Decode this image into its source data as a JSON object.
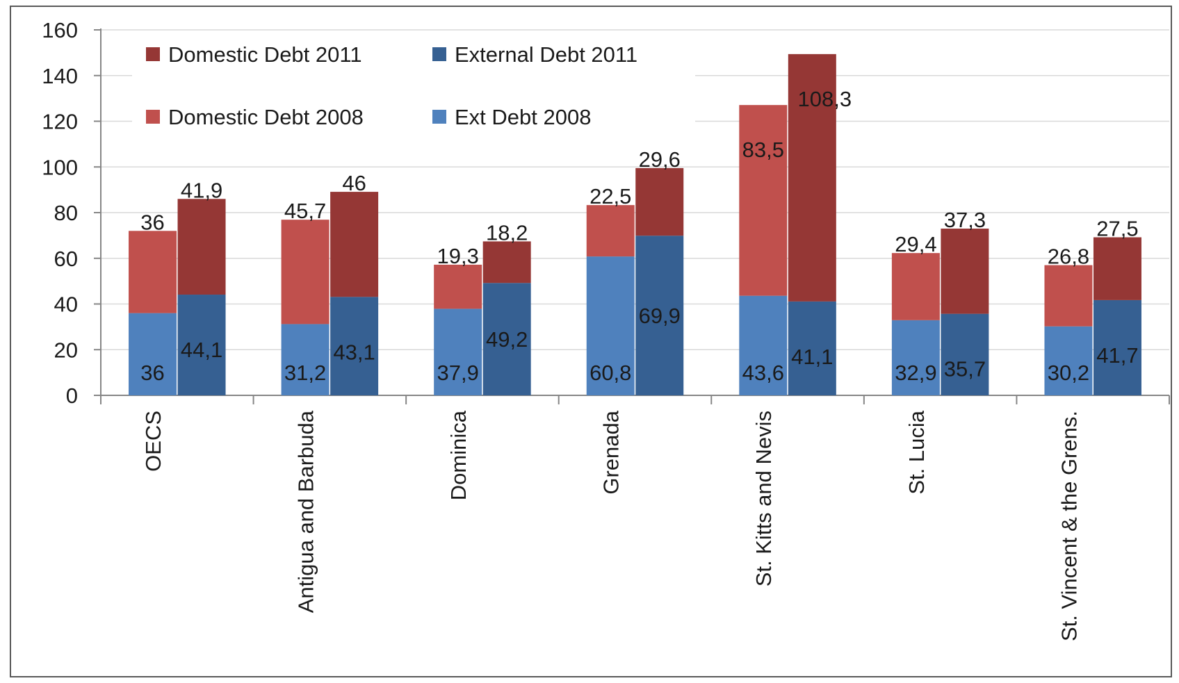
{
  "chart_data": {
    "type": "bar",
    "subtype": "stacked-grouped",
    "categories": [
      "OECS",
      "Antigua and Barbuda",
      "Dominica",
      "Grenada",
      "St. Kitts and Nevis",
      "St. Lucia",
      "St. Vincent & the Grens."
    ],
    "groups": [
      {
        "year": "2008",
        "series": [
          {
            "name": "Ext Debt 2008",
            "color": "#4f81bd",
            "values": [
              36,
              31.2,
              37.9,
              60.8,
              43.6,
              32.9,
              30.2
            ],
            "labels": [
              "36",
              "31,2",
              "37,9",
              "60,8",
              "43,6",
              "32,9",
              "30,2"
            ]
          },
          {
            "name": "Domestic Debt 2008",
            "color": "#c0504d",
            "values": [
              36,
              45.7,
              19.3,
              22.5,
              83.5,
              29.4,
              26.8
            ],
            "labels": [
              "36",
              "45,7",
              "19,3",
              "22,5",
              "83,5",
              "29,4",
              "26,8"
            ]
          }
        ]
      },
      {
        "year": "2011",
        "series": [
          {
            "name": "External Debt 2011",
            "color": "#366092",
            "values": [
              44.1,
              43.1,
              49.2,
              69.9,
              41.1,
              35.7,
              41.7
            ],
            "labels": [
              "44,1",
              "43,1",
              "49,2",
              "69,9",
              "41,1",
              "35,7",
              "41,7"
            ]
          },
          {
            "name": "Domestic Debt 2011",
            "color": "#953735",
            "values": [
              41.9,
              46,
              18.2,
              29.6,
              108.3,
              37.3,
              27.5
            ],
            "labels": [
              "41,9",
              "46",
              "18,2",
              "29,6",
              "108,3",
              "37,3",
              "27,5"
            ]
          }
        ]
      }
    ],
    "legend": [
      {
        "name": "Domestic Debt 2011",
        "color": "#953735"
      },
      {
        "name": "External Debt 2011",
        "color": "#366092"
      },
      {
        "name": "Domestic Debt 2008",
        "color": "#c0504d"
      },
      {
        "name": "Ext Debt 2008",
        "color": "#4f81bd"
      }
    ],
    "legend_position": "top-left",
    "ylim": [
      0,
      160
    ],
    "yticks": [
      "0",
      "20",
      "40",
      "60",
      "80",
      "100",
      "120",
      "140",
      "160"
    ],
    "grid": true,
    "title": "",
    "xlabel": "",
    "ylabel": ""
  }
}
